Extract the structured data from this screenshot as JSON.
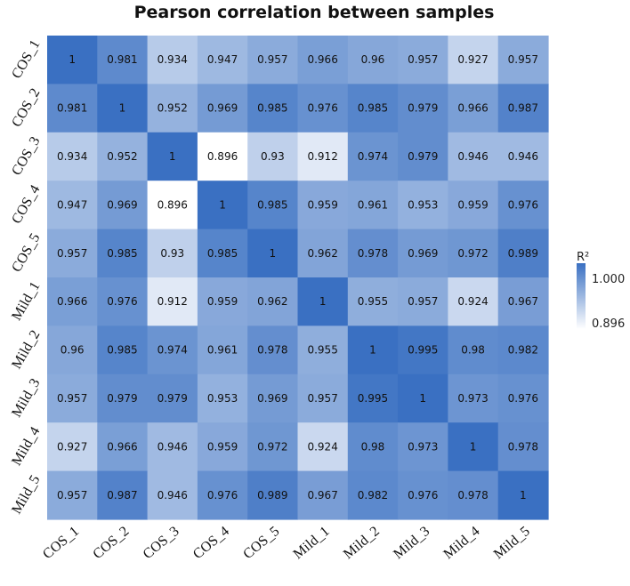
{
  "chart_data": {
    "type": "heatmap",
    "title": "Pearson correlation between samples",
    "rows": [
      "COS_1",
      "COS_2",
      "COS_3",
      "COS_4",
      "COS_5",
      "Mild_1",
      "Mild_2",
      "Mild_3",
      "Mild_4",
      "Mild_5"
    ],
    "columns": [
      "COS_1",
      "COS_2",
      "COS_3",
      "COS_4",
      "COS_5",
      "Mild_1",
      "Mild_2",
      "Mild_3",
      "Mild_4",
      "Mild_5"
    ],
    "values": [
      [
        1,
        0.981,
        0.934,
        0.947,
        0.957,
        0.966,
        0.96,
        0.957,
        0.927,
        0.957
      ],
      [
        0.981,
        1,
        0.952,
        0.969,
        0.985,
        0.976,
        0.985,
        0.979,
        0.966,
        0.987
      ],
      [
        0.934,
        0.952,
        1,
        0.896,
        0.93,
        0.912,
        0.974,
        0.979,
        0.946,
        0.946
      ],
      [
        0.947,
        0.969,
        0.896,
        1,
        0.985,
        0.959,
        0.961,
        0.953,
        0.959,
        0.976
      ],
      [
        0.957,
        0.985,
        0.93,
        0.985,
        1,
        0.962,
        0.978,
        0.969,
        0.972,
        0.989
      ],
      [
        0.966,
        0.976,
        0.912,
        0.959,
        0.962,
        1,
        0.955,
        0.957,
        0.924,
        0.967
      ],
      [
        0.96,
        0.985,
        0.974,
        0.961,
        0.978,
        0.955,
        1,
        0.995,
        0.98,
        0.982
      ],
      [
        0.957,
        0.979,
        0.979,
        0.953,
        0.969,
        0.957,
        0.995,
        1,
        0.973,
        0.976
      ],
      [
        0.927,
        0.966,
        0.946,
        0.959,
        0.972,
        0.924,
        0.98,
        0.973,
        1,
        0.978
      ],
      [
        0.957,
        0.987,
        0.946,
        0.976,
        0.989,
        0.967,
        0.982,
        0.976,
        0.978,
        1
      ]
    ],
    "legend": {
      "title": "R²",
      "max_label": "1.000",
      "min_label": "0.896",
      "range": [
        0.896,
        1.0
      ],
      "placement": "right"
    },
    "colors": {
      "low": "#ffffff",
      "high": "#3a70c2"
    }
  }
}
